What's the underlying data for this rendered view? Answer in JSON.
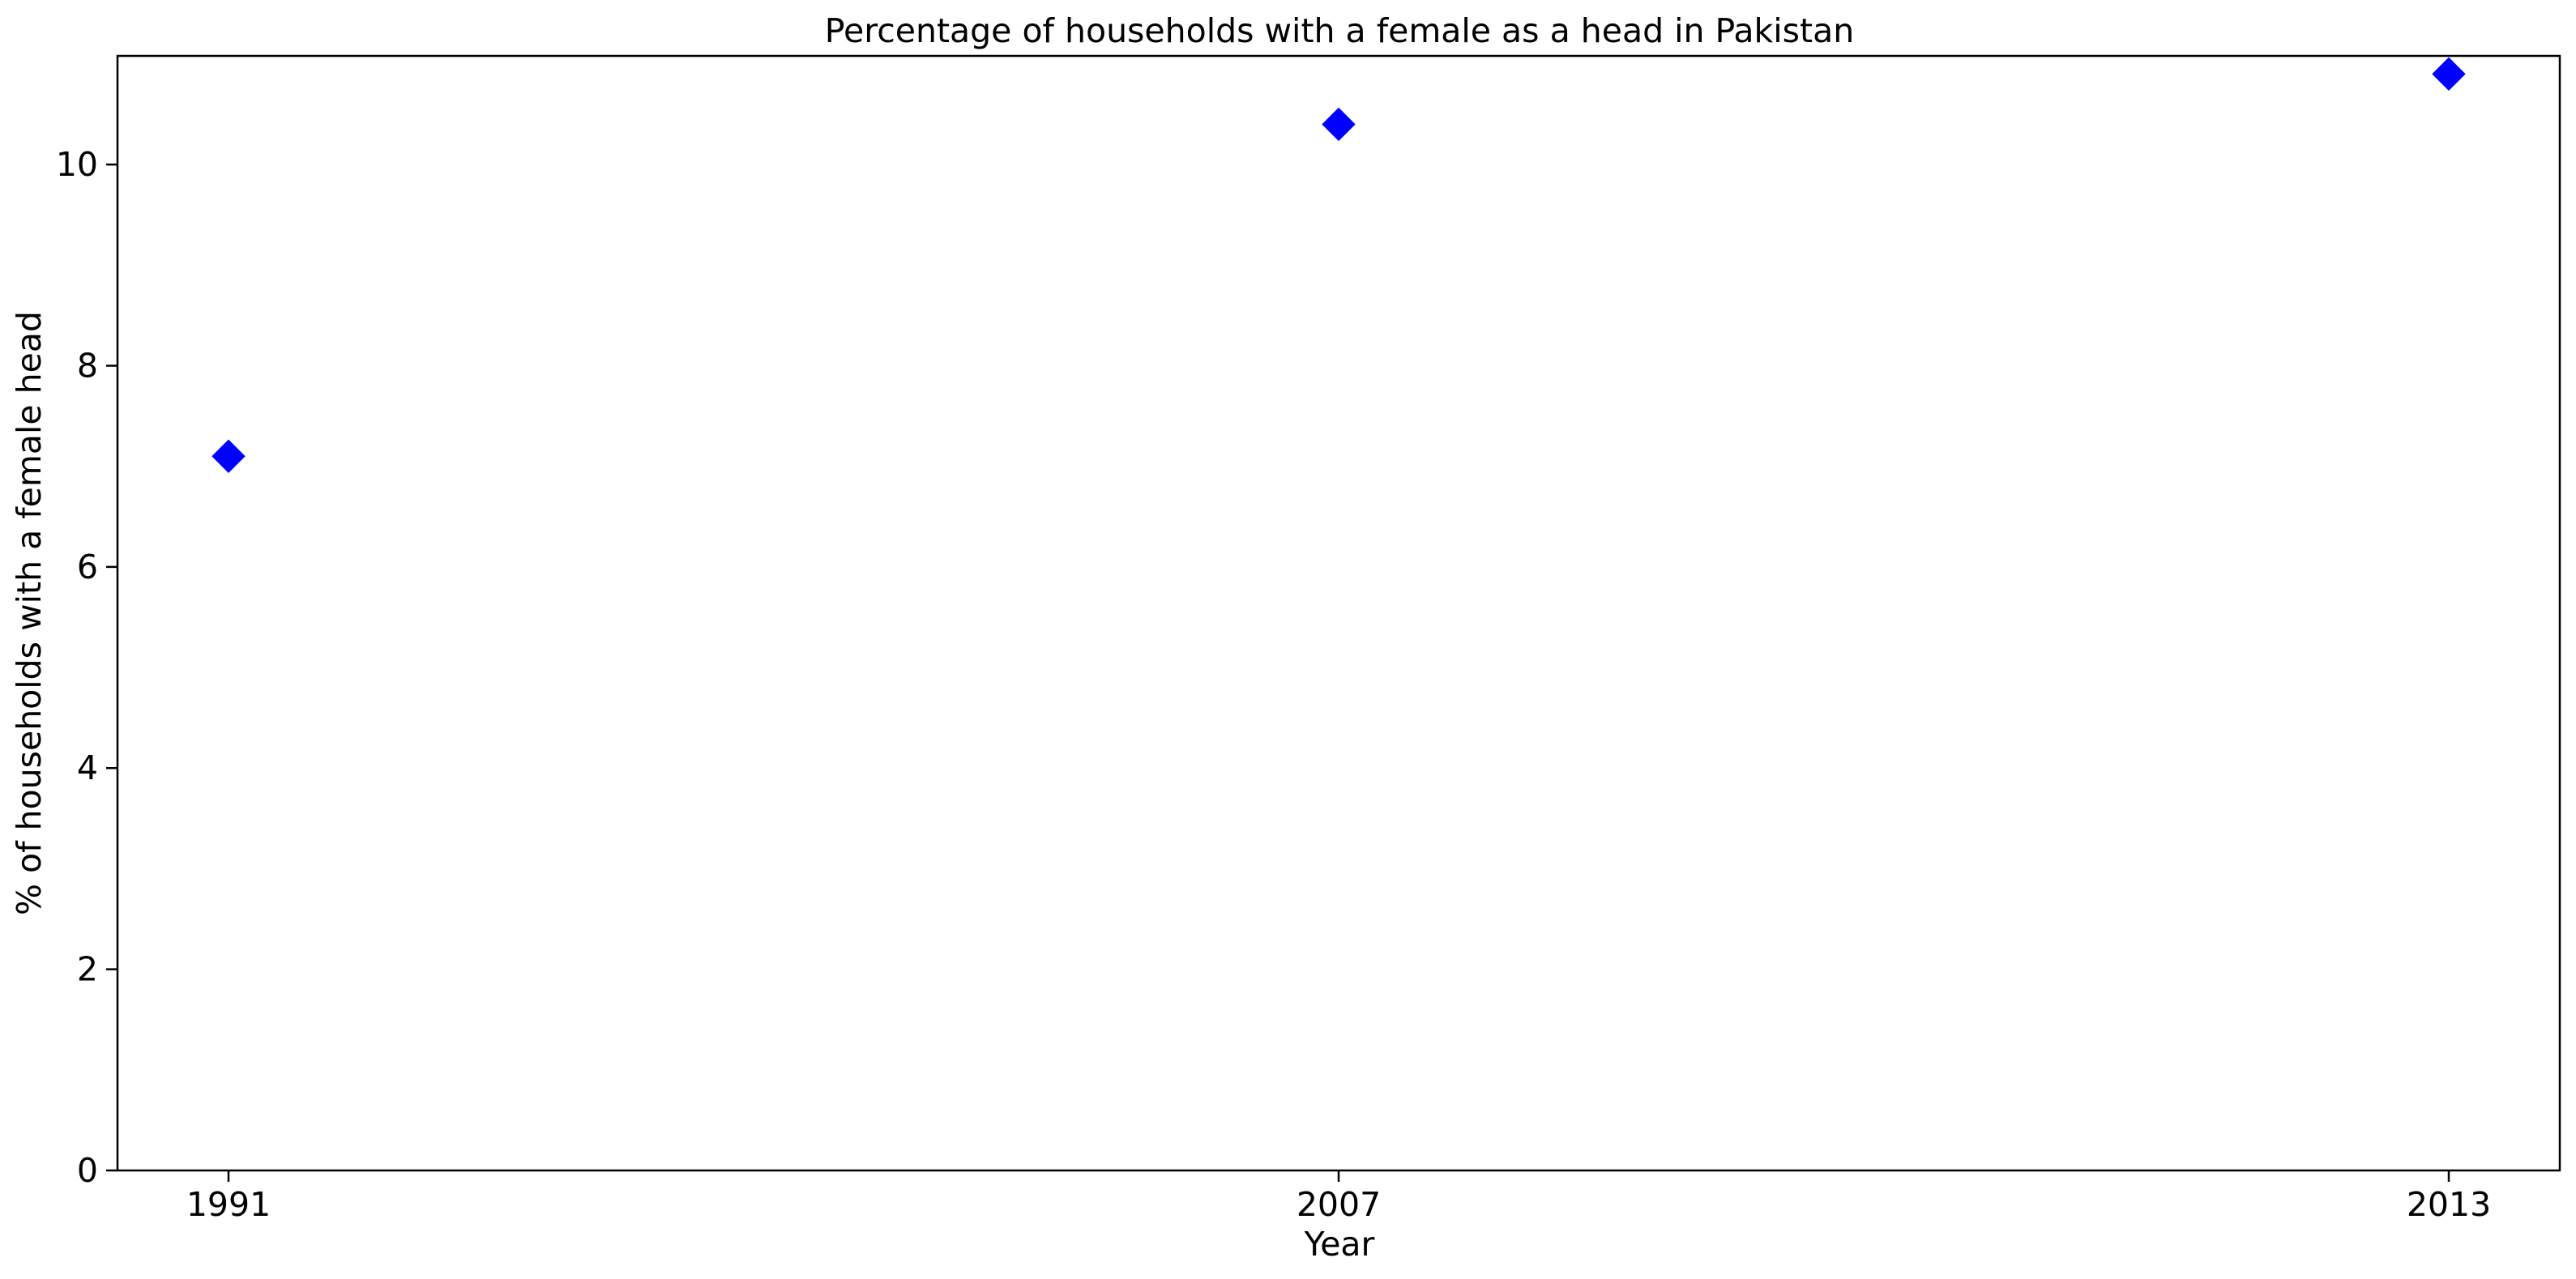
{
  "chart_data": {
    "type": "scatter",
    "title": "Percentage of households with a female as a head in Pakistan",
    "xlabel": "Year",
    "ylabel": "% of households with a female head",
    "categories": [
      "1991",
      "2007",
      "2013"
    ],
    "series": [
      {
        "marker": "diamond",
        "color": "#0000ff",
        "values": [
          7.1,
          10.4,
          10.9
        ]
      }
    ],
    "ylim": [
      0,
      11.08
    ],
    "yticks": [
      0,
      2,
      4,
      6,
      8,
      10
    ],
    "grid": false,
    "legend": "none"
  }
}
